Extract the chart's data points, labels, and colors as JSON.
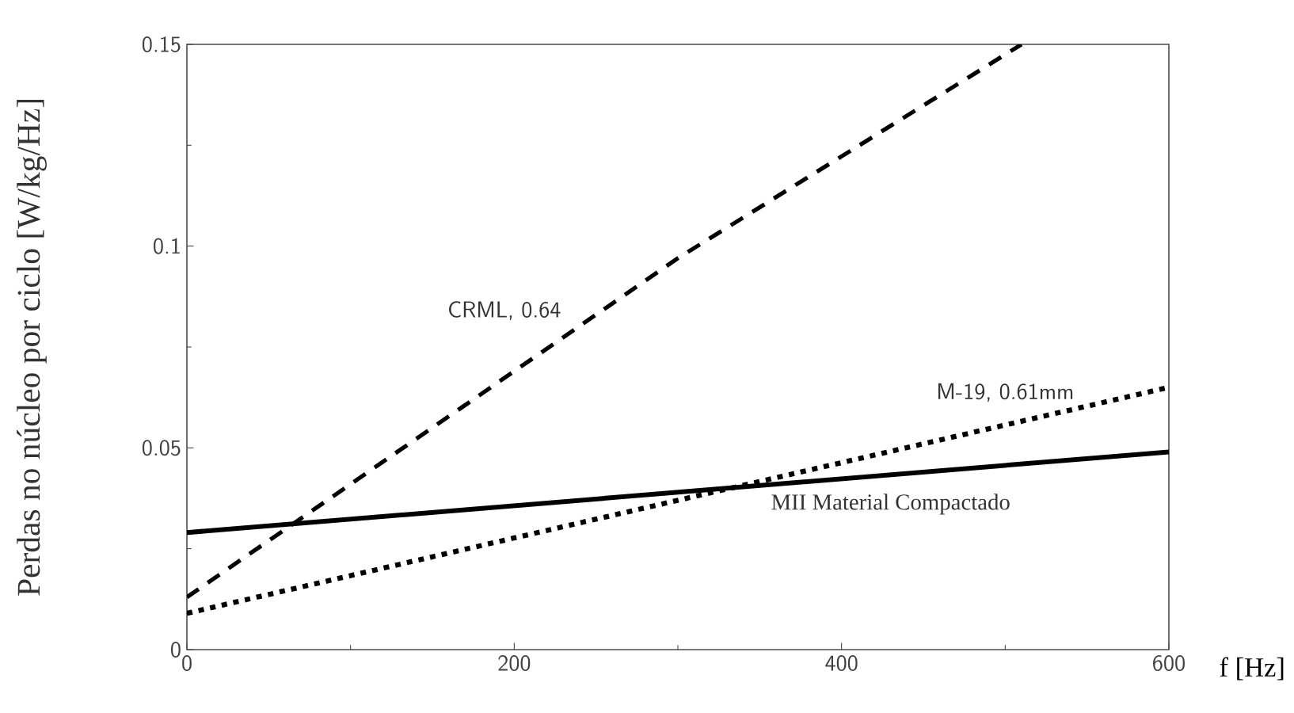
{
  "chart_data": {
    "type": "line",
    "xlabel": "f [Hz]",
    "ylabel": "Perdas no núcleo por ciclo  [W/kg/Hz]",
    "xlim": [
      0,
      600
    ],
    "ylim": [
      0,
      0.15
    ],
    "xticks": [
      0,
      200,
      400,
      600
    ],
    "yticks": [
      0,
      0.05,
      0.1,
      0.15
    ],
    "grid": false,
    "series": [
      {
        "name": "CRML, 0.64",
        "color": "#000000",
        "line_style": "dashed",
        "x": [
          0,
          300,
          510
        ],
        "values": [
          0.013,
          0.097,
          0.15
        ]
      },
      {
        "name": "M-19, 0.61mm",
        "color": "#000000",
        "line_style": "dotted",
        "x": [
          0,
          600
        ],
        "values": [
          0.009,
          0.065
        ]
      },
      {
        "name": "MII Material Compactado",
        "color": "#000000",
        "line_style": "solid",
        "x": [
          0,
          600
        ],
        "values": [
          0.029,
          0.049
        ]
      }
    ]
  }
}
